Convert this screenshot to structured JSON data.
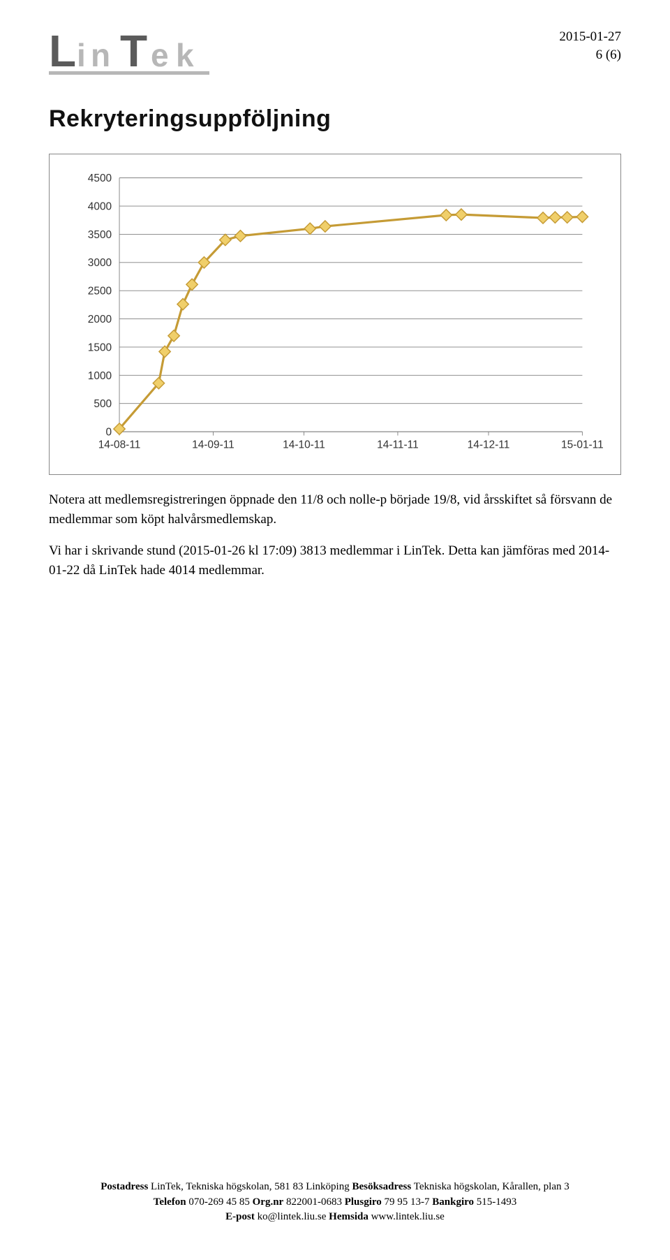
{
  "meta": {
    "date": "2015-01-27",
    "page": "6 (6)"
  },
  "logo": {
    "text": "LinTek",
    "fill_dark": "#5b5b5b",
    "fill_light": "#b7b7b7"
  },
  "title": "Rekryteringsuppföljning",
  "chart": {
    "type": "line",
    "ylim": [
      0,
      4500
    ],
    "ytick_step": 500,
    "yticks": [
      0,
      500,
      1000,
      1500,
      2000,
      2500,
      3000,
      3500,
      4000,
      4500
    ],
    "xticks": [
      "14-08-11",
      "14-09-11",
      "14-10-11",
      "14-11-11",
      "14-12-11",
      "15-01-11"
    ],
    "xtick_positions": [
      0,
      31,
      61,
      92,
      122,
      153
    ],
    "x_range": [
      0,
      153
    ],
    "grid_color": "#808080",
    "axis_color": "#808080",
    "tick_label_fontsize": 17,
    "tick_label_family": "sans-serif",
    "line_color": "#c59b35",
    "line_width": 3.5,
    "marker_outline": "#c59b35",
    "marker_fill": "#f0cf6a",
    "marker_size": 9,
    "marker_shape": "diamond",
    "background_color": "#ffffff",
    "data": [
      {
        "x": 0,
        "y": 50
      },
      {
        "x": 13,
        "y": 860
      },
      {
        "x": 15,
        "y": 1420
      },
      {
        "x": 18,
        "y": 1700
      },
      {
        "x": 21,
        "y": 2260
      },
      {
        "x": 24,
        "y": 2610
      },
      {
        "x": 28,
        "y": 3000
      },
      {
        "x": 35,
        "y": 3400
      },
      {
        "x": 40,
        "y": 3470
      },
      {
        "x": 63,
        "y": 3600
      },
      {
        "x": 68,
        "y": 3640
      },
      {
        "x": 108,
        "y": 3840
      },
      {
        "x": 113,
        "y": 3850
      },
      {
        "x": 140,
        "y": 3790
      },
      {
        "x": 144,
        "y": 3800
      },
      {
        "x": 148,
        "y": 3800
      },
      {
        "x": 153,
        "y": 3810
      }
    ]
  },
  "paragraphs": {
    "p1": "Notera att medlemsregistreringen öppnade den 11/8 och nolle-p började 19/8, vid årsskiftet så försvann de medlemmar som köpt halvårsmedlemskap.",
    "p2": "Vi har i skrivande stund (2015-01-26 kl 17:09) 3813 medlemmar i LinTek. Detta kan jämföras med 2014-01-22 då LinTek hade 4014 medlemmar."
  },
  "footer": {
    "postadress_label": "Postadress",
    "postadress": " LinTek, Tekniska högskolan, 581 83 Linköping ",
    "besok_label": "Besöksadress",
    "besok": " Tekniska högskolan, Kårallen, plan 3",
    "telefon_label": "Telefon",
    "telefon": " 070-269 45 85 ",
    "org_label": "Org.nr",
    "org": " 822001-0683 ",
    "plusgiro_label": "Plusgiro",
    "plusgiro": " 79 95 13-7 ",
    "bankgiro_label": "Bankgiro",
    "bankgiro": " 515-1493",
    "epost_label": "E-post",
    "epost": " ko@lintek.liu.se ",
    "hemsida_label": "Hemsida",
    "hemsida": " www.lintek.liu.se"
  }
}
